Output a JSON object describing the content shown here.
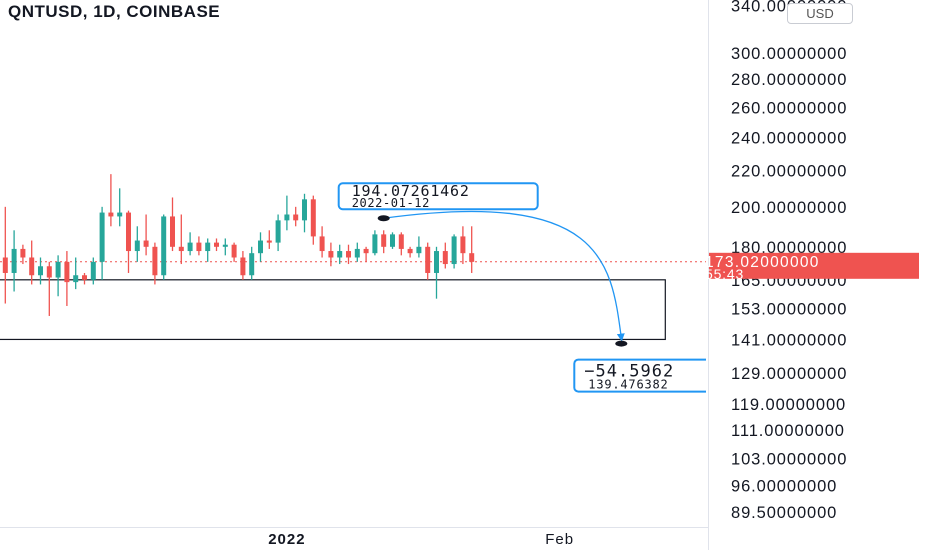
{
  "header": {
    "title": "QNTUSD, 1D, COINBASE",
    "currency_button": "USD"
  },
  "chart_data": {
    "type": "candlestick",
    "symbol": "QNTUSD",
    "interval": "1D",
    "exchange": "COINBASE",
    "y_scale": "log",
    "ylim": [
      86,
      345
    ],
    "price_ticks": [
      "340.00000000",
      "300.00000000",
      "280.00000000",
      "260.00000000",
      "240.00000000",
      "220.00000000",
      "200.00000000",
      "180.00000000",
      "165.00000000",
      "153.00000000",
      "141.00000000",
      "129.00000000",
      "119.00000000",
      "111.00000000",
      "103.00000000",
      "96.00000000",
      "89.50000000"
    ],
    "time_ticks": [
      {
        "label": "2022",
        "date": "2022-01-01"
      },
      {
        "label": "Feb",
        "date": "2022-02-01"
      }
    ],
    "x_range": [
      "2021-11-29",
      "2022-03-12"
    ],
    "current_price": {
      "label": "173.02000000",
      "countdown": "55:43",
      "value": 173.02,
      "color": "#ef5350"
    },
    "colors": {
      "up": "#26a69a",
      "down": "#ef5350",
      "arrow": "#2196f3",
      "box_border": "#131722"
    },
    "candles": [
      {
        "date": "2021-11-29",
        "o": 182,
        "h": 194,
        "l": 164,
        "c": 175
      },
      {
        "date": "2021-11-30",
        "o": 175,
        "h": 200,
        "l": 155,
        "c": 168
      },
      {
        "date": "2021-12-01",
        "o": 168,
        "h": 188,
        "l": 160,
        "c": 179
      },
      {
        "date": "2021-12-02",
        "o": 179,
        "h": 181,
        "l": 172,
        "c": 175
      },
      {
        "date": "2021-12-03",
        "o": 175,
        "h": 183,
        "l": 163,
        "c": 167
      },
      {
        "date": "2021-12-04",
        "o": 167,
        "h": 175,
        "l": 163,
        "c": 171
      },
      {
        "date": "2021-12-05",
        "o": 171,
        "h": 173,
        "l": 150,
        "c": 166
      },
      {
        "date": "2021-12-06",
        "o": 166,
        "h": 176,
        "l": 158,
        "c": 173
      },
      {
        "date": "2021-12-07",
        "o": 173,
        "h": 178,
        "l": 154,
        "c": 164
      },
      {
        "date": "2021-12-08",
        "o": 164,
        "h": 175,
        "l": 161,
        "c": 167
      },
      {
        "date": "2021-12-09",
        "o": 167,
        "h": 168,
        "l": 163,
        "c": 165
      },
      {
        "date": "2021-12-10",
        "o": 165,
        "h": 175,
        "l": 163,
        "c": 173
      },
      {
        "date": "2021-12-11",
        "o": 173,
        "h": 200,
        "l": 165,
        "c": 197
      },
      {
        "date": "2021-12-12",
        "o": 197,
        "h": 218,
        "l": 190,
        "c": 195
      },
      {
        "date": "2021-12-13",
        "o": 195,
        "h": 210,
        "l": 190,
        "c": 197
      },
      {
        "date": "2021-12-14",
        "o": 197,
        "h": 198,
        "l": 168,
        "c": 178
      },
      {
        "date": "2021-12-15",
        "o": 178,
        "h": 190,
        "l": 173,
        "c": 183
      },
      {
        "date": "2021-12-16",
        "o": 183,
        "h": 196,
        "l": 176,
        "c": 180
      },
      {
        "date": "2021-12-17",
        "o": 180,
        "h": 182,
        "l": 163,
        "c": 167
      },
      {
        "date": "2021-12-18",
        "o": 167,
        "h": 196,
        "l": 165,
        "c": 195
      },
      {
        "date": "2021-12-19",
        "o": 195,
        "h": 205,
        "l": 178,
        "c": 180
      },
      {
        "date": "2021-12-20",
        "o": 180,
        "h": 196,
        "l": 172,
        "c": 178
      },
      {
        "date": "2021-12-21",
        "o": 178,
        "h": 187,
        "l": 176,
        "c": 182
      },
      {
        "date": "2021-12-22",
        "o": 182,
        "h": 185,
        "l": 176,
        "c": 178
      },
      {
        "date": "2021-12-23",
        "o": 178,
        "h": 184,
        "l": 173,
        "c": 182
      },
      {
        "date": "2021-12-24",
        "o": 182,
        "h": 184,
        "l": 178,
        "c": 180
      },
      {
        "date": "2021-12-25",
        "o": 180,
        "h": 184,
        "l": 176,
        "c": 181
      },
      {
        "date": "2021-12-26",
        "o": 181,
        "h": 182,
        "l": 173,
        "c": 175
      },
      {
        "date": "2021-12-27",
        "o": 175,
        "h": 178,
        "l": 165,
        "c": 167
      },
      {
        "date": "2021-12-28",
        "o": 167,
        "h": 180,
        "l": 165,
        "c": 177
      },
      {
        "date": "2021-12-29",
        "o": 177,
        "h": 187,
        "l": 173,
        "c": 183
      },
      {
        "date": "2021-12-30",
        "o": 183,
        "h": 188,
        "l": 179,
        "c": 182
      },
      {
        "date": "2021-12-31",
        "o": 182,
        "h": 196,
        "l": 178,
        "c": 193
      },
      {
        "date": "2022-01-01",
        "o": 193,
        "h": 206,
        "l": 188,
        "c": 196
      },
      {
        "date": "2022-01-02",
        "o": 196,
        "h": 200,
        "l": 190,
        "c": 193
      },
      {
        "date": "2022-01-03",
        "o": 193,
        "h": 207,
        "l": 187,
        "c": 204
      },
      {
        "date": "2022-01-04",
        "o": 204,
        "h": 206,
        "l": 181,
        "c": 185
      },
      {
        "date": "2022-01-05",
        "o": 185,
        "h": 190,
        "l": 175,
        "c": 178
      },
      {
        "date": "2022-01-06",
        "o": 178,
        "h": 182,
        "l": 171,
        "c": 175
      },
      {
        "date": "2022-01-07",
        "o": 175,
        "h": 181,
        "l": 172,
        "c": 178
      },
      {
        "date": "2022-01-08",
        "o": 178,
        "h": 181,
        "l": 172,
        "c": 175
      },
      {
        "date": "2022-01-09",
        "o": 175,
        "h": 182,
        "l": 173,
        "c": 179
      },
      {
        "date": "2022-01-10",
        "o": 179,
        "h": 180,
        "l": 173,
        "c": 177
      },
      {
        "date": "2022-01-11",
        "o": 177,
        "h": 188,
        "l": 176,
        "c": 186
      },
      {
        "date": "2022-01-12",
        "o": 186,
        "h": 188,
        "l": 177,
        "c": 180
      },
      {
        "date": "2022-01-13",
        "o": 180,
        "h": 187,
        "l": 179,
        "c": 186
      },
      {
        "date": "2022-01-14",
        "o": 186,
        "h": 187,
        "l": 176,
        "c": 179
      },
      {
        "date": "2022-01-15",
        "o": 179,
        "h": 180,
        "l": 175,
        "c": 177
      },
      {
        "date": "2022-01-16",
        "o": 177,
        "h": 185,
        "l": 175,
        "c": 180
      },
      {
        "date": "2022-01-17",
        "o": 180,
        "h": 182,
        "l": 165,
        "c": 168
      },
      {
        "date": "2022-01-18",
        "o": 168,
        "h": 180,
        "l": 157,
        "c": 178
      },
      {
        "date": "2022-01-19",
        "o": 178,
        "h": 182,
        "l": 170,
        "c": 172
      },
      {
        "date": "2022-01-20",
        "o": 172,
        "h": 186,
        "l": 170,
        "c": 185
      },
      {
        "date": "2022-01-21",
        "o": 185,
        "h": 190,
        "l": 172,
        "c": 177
      },
      {
        "date": "2022-01-22",
        "o": 177,
        "h": 190,
        "l": 168,
        "c": 173
      }
    ],
    "rectangle": {
      "from": "2021-11-20",
      "to": "2022-02-13",
      "top": 165,
      "bottom": 141
    },
    "annotations": [
      {
        "kind": "start",
        "date": "2022-01-12",
        "price": 194.07261462,
        "value_label": "194.07261462",
        "date_label": "2022-01-12"
      },
      {
        "kind": "end",
        "date": "2022-02-08",
        "price": 139.47638,
        "change_label": "−54.5962",
        "price_label": "139.476382"
      }
    ]
  }
}
